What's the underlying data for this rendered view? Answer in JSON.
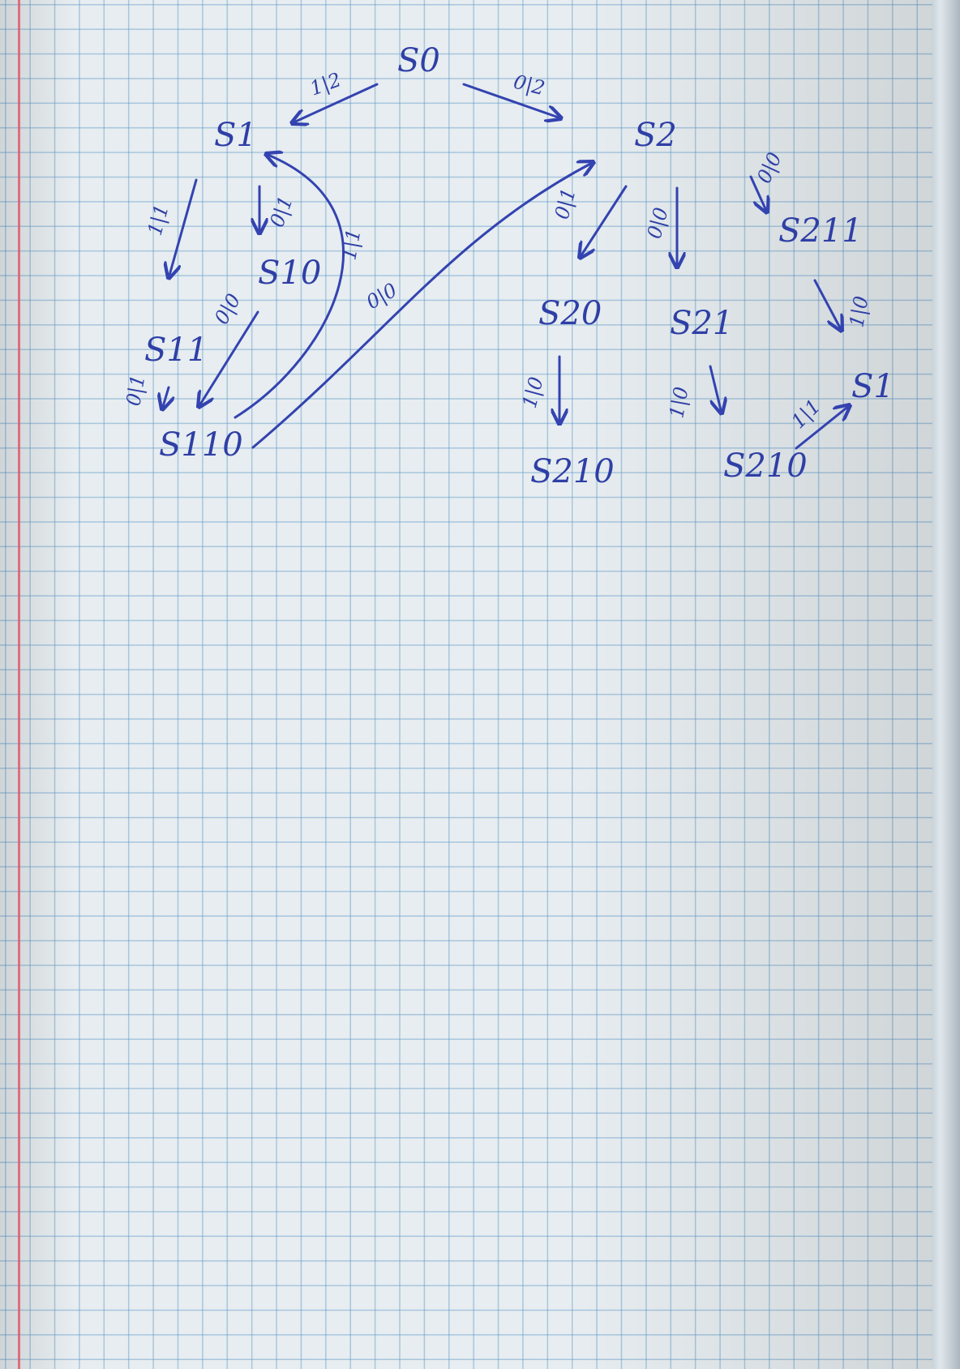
{
  "nodes": [
    {
      "id": "s0",
      "label": "S0"
    },
    {
      "id": "s1",
      "label": "S1"
    },
    {
      "id": "s2",
      "label": "S2"
    },
    {
      "id": "s10",
      "label": "S10"
    },
    {
      "id": "s11",
      "label": "S11"
    },
    {
      "id": "s110",
      "label": "S110"
    },
    {
      "id": "s20",
      "label": "S20"
    },
    {
      "id": "s21",
      "label": "S21"
    },
    {
      "id": "s210-a",
      "label": "S210"
    },
    {
      "id": "s210-b",
      "label": "S210"
    },
    {
      "id": "s211",
      "label": "S211"
    },
    {
      "id": "s1-right",
      "label": "S1"
    }
  ],
  "edges": [
    {
      "id": "s0-s1",
      "from": "s0",
      "to": "s1",
      "label": "1|2"
    },
    {
      "id": "s0-s2",
      "from": "s0",
      "to": "s2",
      "label": "0|2"
    },
    {
      "id": "s1-s11",
      "from": "s1",
      "to": "s11",
      "label": "1|1"
    },
    {
      "id": "s1-s10",
      "from": "s1",
      "to": "s10",
      "label": "0|1"
    },
    {
      "id": "s10-s110",
      "from": "s10",
      "to": "s110",
      "label": "0|0"
    },
    {
      "id": "s11-s110",
      "from": "s11",
      "to": "s110",
      "label": "0|1"
    },
    {
      "id": "s110-s1",
      "from": "s110",
      "to": "s1",
      "label": "1|1"
    },
    {
      "id": "s110-s2",
      "from": "s110",
      "to": "s2",
      "label": "0|0"
    },
    {
      "id": "s2-s20",
      "from": "s2",
      "to": "s20",
      "label": "0|1"
    },
    {
      "id": "s2-s21",
      "from": "s2",
      "to": "s21",
      "label": "0|0"
    },
    {
      "id": "s2-s211",
      "from": "s2",
      "to": "s211",
      "label": "0|0"
    },
    {
      "id": "s20-s210",
      "from": "s20",
      "to": "s210-a",
      "label": "1|0"
    },
    {
      "id": "s21-s210",
      "from": "s21",
      "to": "s210-b",
      "label": "1|0"
    },
    {
      "id": "s211-s1",
      "from": "s211",
      "to": "s1-right",
      "label": "1|0"
    },
    {
      "id": "s210-s1",
      "from": "s210-b",
      "to": "s1-right",
      "label": "1|1"
    }
  ]
}
